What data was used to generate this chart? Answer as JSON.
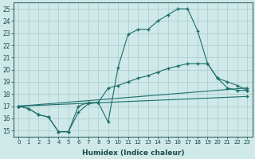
{
  "xlabel": "Humidex (Indice chaleur)",
  "background_color": "#cfe8e8",
  "grid_color": "#a8cccc",
  "line_color": "#1a6e6a",
  "xlim": [
    -0.5,
    23.5
  ],
  "ylim": [
    14.5,
    25.5
  ],
  "yticks": [
    15,
    16,
    17,
    18,
    19,
    20,
    21,
    22,
    23,
    24,
    25
  ],
  "xticks": [
    0,
    1,
    2,
    3,
    4,
    5,
    6,
    7,
    8,
    9,
    10,
    11,
    12,
    13,
    14,
    15,
    16,
    17,
    18,
    19,
    20,
    21,
    22,
    23
  ],
  "line1_x": [
    0,
    1,
    2,
    3,
    4,
    5,
    6,
    7,
    8,
    9,
    10,
    11,
    12,
    13,
    14,
    15,
    16,
    17,
    18,
    19,
    20,
    21,
    22,
    23
  ],
  "line1_y": [
    17.0,
    16.8,
    16.3,
    16.1,
    14.9,
    14.9,
    17.0,
    17.3,
    17.3,
    15.7,
    20.2,
    22.9,
    23.3,
    23.3,
    24.0,
    24.5,
    25.0,
    25.0,
    23.2,
    20.5,
    19.3,
    18.5,
    18.3,
    18.3
  ],
  "line2_x": [
    0,
    1,
    2,
    3,
    4,
    5,
    6,
    7,
    8,
    9,
    10,
    11,
    12,
    13,
    14,
    15,
    16,
    17,
    18,
    19,
    20,
    21,
    22,
    23
  ],
  "line2_y": [
    17.0,
    16.8,
    16.3,
    16.1,
    14.9,
    14.9,
    16.5,
    17.2,
    17.3,
    18.5,
    18.7,
    19.0,
    19.3,
    19.5,
    19.8,
    20.1,
    20.3,
    20.5,
    20.5,
    20.5,
    19.3,
    19.0,
    18.7,
    18.3
  ],
  "line3_x": [
    0,
    23
  ],
  "line3_y": [
    17.0,
    18.5
  ],
  "line4_x": [
    0,
    23
  ],
  "line4_y": [
    17.0,
    17.8
  ]
}
